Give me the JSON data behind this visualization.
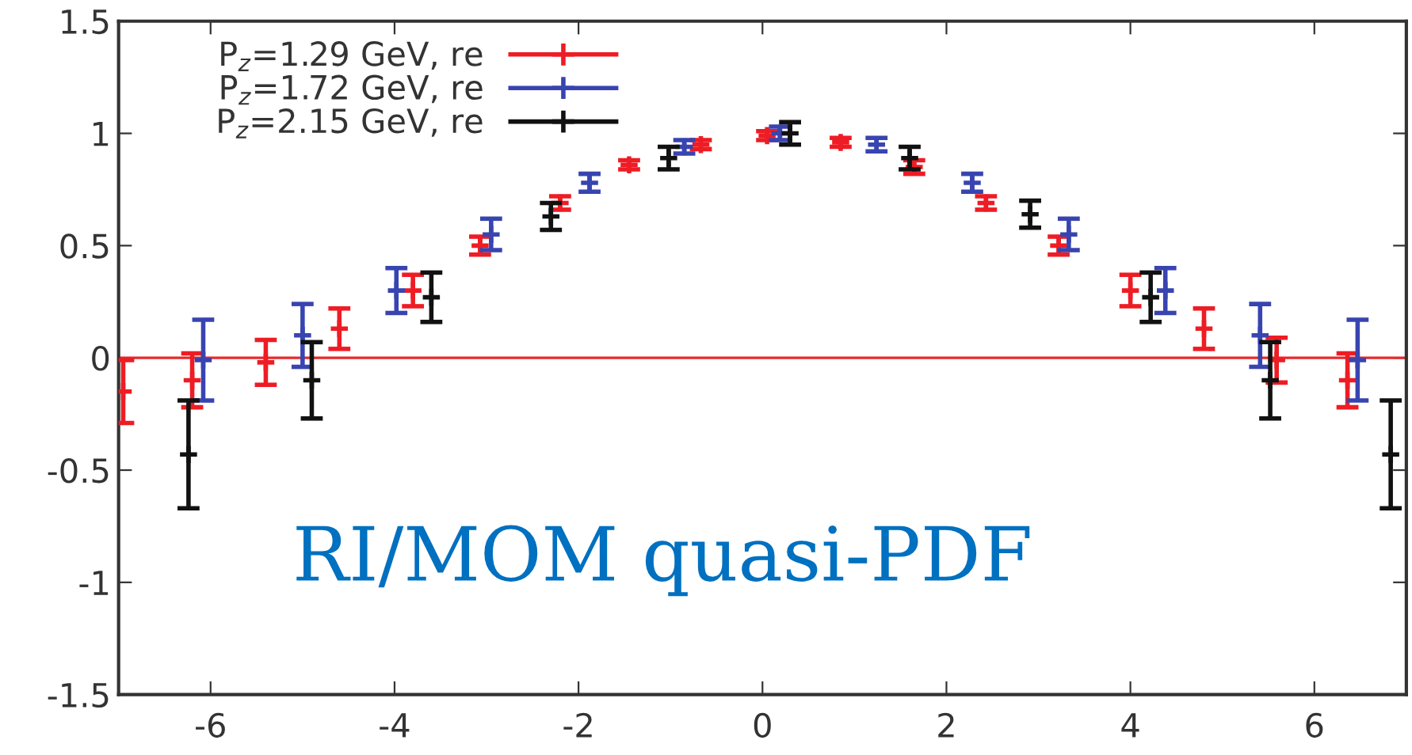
{
  "chart_data": {
    "type": "scatter",
    "xlim": [
      -7,
      7
    ],
    "ylim": [
      -1.5,
      1.5
    ],
    "xticks": [
      -6,
      -4,
      -2,
      0,
      2,
      4,
      6
    ],
    "yticks": [
      -1.5,
      -1,
      -0.5,
      0,
      0.5,
      1,
      1.5
    ],
    "grid": false,
    "legend": "top left",
    "marker": "cross",
    "ref_lines": [
      {
        "axis": "y",
        "value": 0,
        "color": "#e8292b",
        "line_style": "solid"
      }
    ],
    "annotations": [
      "RI/MOM quasi-PDF"
    ],
    "series": [
      {
        "name": "P$_{z}$=1.29 GeV, re",
        "color": "#ee1c24",
        "x": [
          -6.95,
          -6.2,
          -5.4,
          -4.6,
          -3.8,
          -3.07,
          -2.2,
          -1.45,
          -0.67,
          0.05,
          0.85,
          1.65,
          2.43,
          3.22,
          4.0,
          4.8,
          5.59,
          6.36
        ],
        "values": [
          -0.15,
          -0.1,
          -0.02,
          0.13,
          0.3,
          0.5,
          0.69,
          0.86,
          0.95,
          0.99,
          0.96,
          0.85,
          0.69,
          0.5,
          0.3,
          0.13,
          -0.01,
          -0.1
        ],
        "errors": [
          0.14,
          0.12,
          0.1,
          0.09,
          0.07,
          0.04,
          0.03,
          0.02,
          0.02,
          0.02,
          0.02,
          0.03,
          0.03,
          0.04,
          0.07,
          0.09,
          0.1,
          0.12
        ]
      },
      {
        "name": "P$_{z}$=1.72 GeV, re",
        "color": "#3844b0",
        "x": [
          -6.08,
          -5.0,
          -3.98,
          -2.95,
          -1.88,
          -0.85,
          0.19,
          1.24,
          2.28,
          3.33,
          4.38,
          5.41,
          6.47
        ],
        "values": [
          -0.01,
          0.1,
          0.3,
          0.55,
          0.78,
          0.94,
          1.0,
          0.95,
          0.78,
          0.55,
          0.3,
          0.1,
          -0.01
        ],
        "errors": [
          0.18,
          0.14,
          0.1,
          0.07,
          0.04,
          0.03,
          0.03,
          0.03,
          0.04,
          0.07,
          0.1,
          0.14,
          0.18
        ]
      },
      {
        "name": "P$_{z}$=2.15 GeV, re",
        "color": "#111111",
        "x": [
          -6.24,
          -4.9,
          -3.6,
          -2.3,
          -1.02,
          0.3,
          1.6,
          2.91,
          4.22,
          5.52,
          6.83
        ],
        "values": [
          -0.43,
          -0.1,
          0.27,
          0.63,
          0.89,
          1.0,
          0.89,
          0.64,
          0.27,
          -0.1,
          -0.43
        ],
        "errors": [
          0.24,
          0.17,
          0.11,
          0.06,
          0.05,
          0.05,
          0.05,
          0.06,
          0.11,
          0.17,
          0.24
        ]
      }
    ]
  }
}
